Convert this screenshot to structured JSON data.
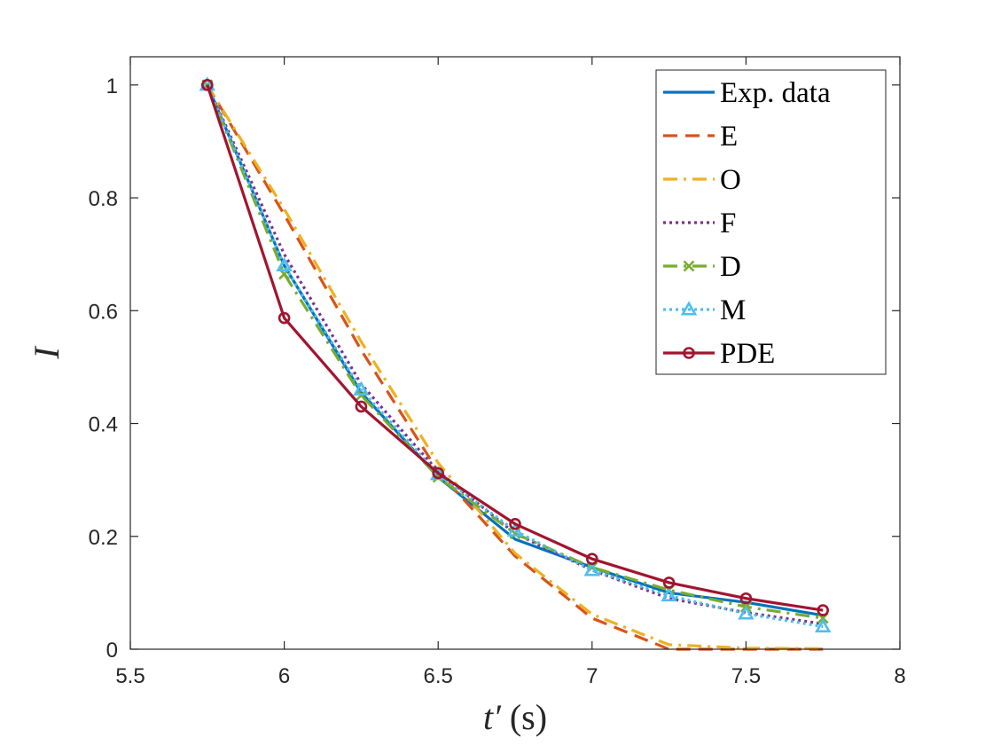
{
  "chart_data": {
    "type": "line",
    "title": "",
    "xlabel": {
      "symbol": "t′",
      "unit": "(s)"
    },
    "ylabel": "I",
    "xlim": [
      5.5,
      8
    ],
    "ylim": [
      0,
      1.05
    ],
    "xticks": [
      5.5,
      6,
      6.5,
      7,
      7.5,
      8
    ],
    "xtick_labels": [
      "5.5",
      "6",
      "6.5",
      "7",
      "7.5",
      "8"
    ],
    "yticks": [
      0,
      0.2,
      0.4,
      0.6,
      0.8,
      1
    ],
    "ytick_labels": [
      "0",
      "0.2",
      "0.4",
      "0.6",
      "0.8",
      "1"
    ],
    "grid": false,
    "legend_position": "top-right",
    "x": [
      5.75,
      6.0,
      6.25,
      6.5,
      6.75,
      7.0,
      7.25,
      7.5,
      7.75
    ],
    "series": [
      {
        "name": "Exp. data",
        "color": "#0072BD",
        "dash": "solid",
        "marker": "none",
        "values": [
          1.0,
          0.68,
          0.455,
          0.305,
          0.195,
          0.145,
          0.1,
          0.083,
          0.06
        ]
      },
      {
        "name": "E",
        "color": "#D95319",
        "dash": "dashed",
        "marker": "none",
        "values": [
          1.0,
          0.77,
          0.53,
          0.315,
          0.165,
          0.055,
          0.0,
          0.0,
          0.0
        ]
      },
      {
        "name": "O",
        "color": "#EDB120",
        "dash": "dashdot",
        "marker": "none",
        "values": [
          1.0,
          0.78,
          0.545,
          0.33,
          0.17,
          0.062,
          0.008,
          0.002,
          0.001
        ]
      },
      {
        "name": "F",
        "color": "#7E2F8E",
        "dash": "dotted",
        "marker": "none",
        "values": [
          1.0,
          0.7,
          0.47,
          0.315,
          0.205,
          0.14,
          0.09,
          0.065,
          0.045
        ]
      },
      {
        "name": "D",
        "color": "#77AC30",
        "dash": "dashdot",
        "marker": "x",
        "values": [
          1.0,
          0.665,
          0.45,
          0.305,
          0.205,
          0.145,
          0.105,
          0.075,
          0.055
        ]
      },
      {
        "name": "M",
        "color": "#4DBEEE",
        "dash": "dotted",
        "marker": "triangle",
        "values": [
          1.0,
          0.68,
          0.46,
          0.31,
          0.21,
          0.14,
          0.095,
          0.063,
          0.04
        ]
      },
      {
        "name": "PDE",
        "color": "#A2142F",
        "dash": "solid",
        "marker": "circle",
        "values": [
          1.0,
          0.587,
          0.43,
          0.312,
          0.222,
          0.16,
          0.118,
          0.09,
          0.069
        ]
      }
    ]
  }
}
